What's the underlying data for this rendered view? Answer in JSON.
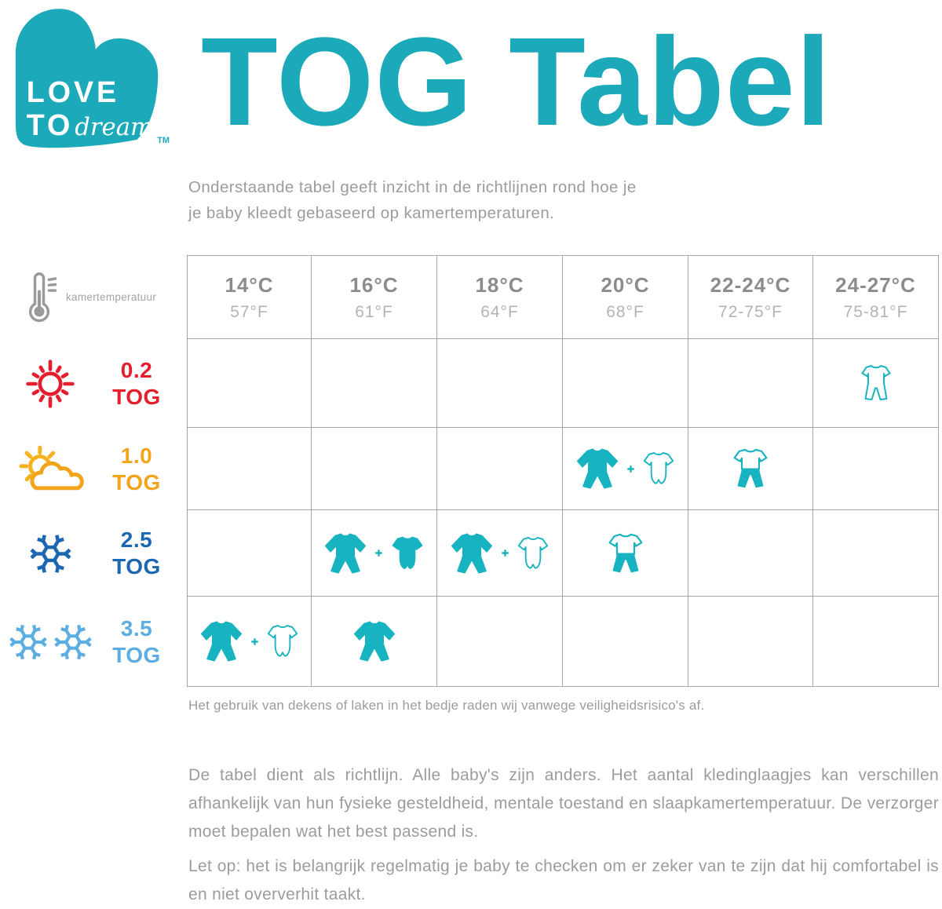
{
  "logo": {
    "line1": "LOVE",
    "line2": "TO",
    "script": "dream",
    "tm": "TM"
  },
  "title": "TOG Tabel",
  "subtitle": {
    "line1": "Onderstaande tabel geeft inzicht in de richtlijnen rond hoe je",
    "line2": "je baby kleedt gebaseerd op kamertemperaturen."
  },
  "palette": {
    "teal_brand": "#1CA9B9",
    "teal_icon": "#18B3C1",
    "red": "#E41F2D",
    "orange": "#F2A51C",
    "orange_sun": "#F4B31E",
    "blue_dark": "#1B67B2",
    "blue_light": "#5CADE2",
    "gray_text": "#9C9C9C",
    "gray_header": "#8C8C8C",
    "gray_light": "#B3B3B3",
    "gray_icon": "#9A9A9A",
    "grid": "#A5A5A5"
  },
  "table": {
    "corner_label": "kamertemperatuur",
    "columns": [
      {
        "celsius": "14°C",
        "fahrenheit": "57°F"
      },
      {
        "celsius": "16°C",
        "fahrenheit": "61°F"
      },
      {
        "celsius": "18°C",
        "fahrenheit": "64°F"
      },
      {
        "celsius": "20°C",
        "fahrenheit": "68°F"
      },
      {
        "celsius": "22-24°C",
        "fahrenheit": "72-75°F"
      },
      {
        "celsius": "24-27°C",
        "fahrenheit": "75-81°F"
      }
    ],
    "rows": [
      {
        "tog": "0.2",
        "unit": "TOG",
        "color": "#E41F2D",
        "weather_icon": "sun-icon",
        "cells": [
          [],
          [],
          [],
          [],
          [],
          [
            "romper-outline"
          ]
        ]
      },
      {
        "tog": "1.0",
        "unit": "TOG",
        "color": "#F2A51C",
        "weather_icon": "sun-cloud-icon",
        "cells": [
          [],
          [],
          [],
          [
            "sleepsuit-filled",
            "plus",
            "bodysuit-outline"
          ],
          [
            "romper-half-filled"
          ],
          []
        ]
      },
      {
        "tog": "2.5",
        "unit": "TOG",
        "color": "#1B67B2",
        "weather_icon": "snowflake-icon",
        "cells": [
          [],
          [
            "sleepsuit-filled",
            "plus",
            "bodysuit-filled"
          ],
          [
            "sleepsuit-filled",
            "plus",
            "bodysuit-outline"
          ],
          [
            "romper-half-filled"
          ],
          [],
          []
        ]
      },
      {
        "tog": "3.5",
        "unit": "TOG",
        "color": "#5CADE2",
        "weather_icon": "double-snowflake-icon",
        "cells": [
          [
            "sleepsuit-filled",
            "plus",
            "bodysuit-outline"
          ],
          [
            "sleepsuit-filled"
          ],
          [],
          [],
          [],
          []
        ]
      }
    ]
  },
  "footnote": "Het gebruik van dekens of laken in het bedje raden wij vanwege veiligheidsrisico's af.",
  "paragraphs": {
    "p1": "De tabel dient als richtlijn. Alle baby's zijn anders. Het aantal kledinglaagjes kan verschillen afhankelijk van hun fysieke gesteldheid, mentale toestand en slaapkamertemperatuur. De verzorger moet bepalen wat het best passend is.",
    "p2": "Let op: het is belangrijk regelmatig je baby te checken om er zeker van te zijn dat hij comfortabel is en niet oververhit taakt."
  }
}
